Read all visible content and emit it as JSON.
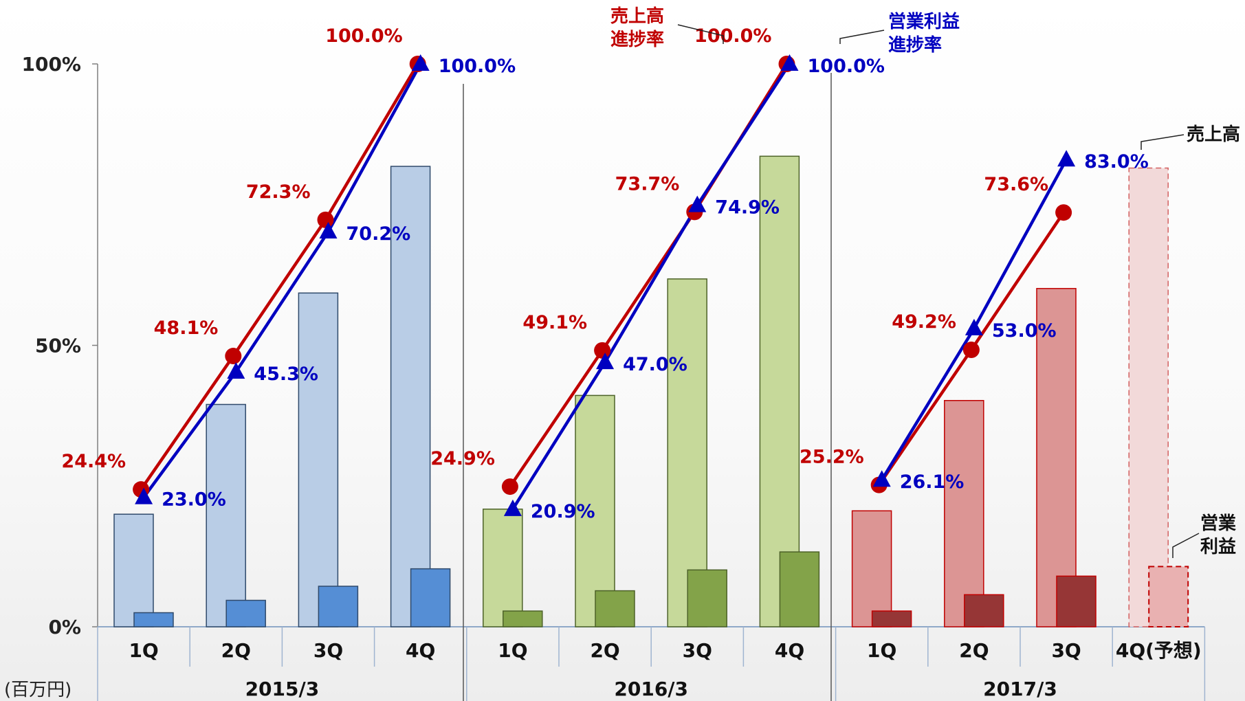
{
  "chart_data": {
    "type": "bar",
    "unit_label": "(百万円)",
    "y_ticks": [
      "0%",
      "50%",
      "100%"
    ],
    "ylim": [
      0,
      100
    ],
    "groups": [
      {
        "year": "2015/3",
        "color_light": "#b9cde6",
        "color_dark": "#558ed5",
        "border": "#2f4a6b",
        "quarters": [
          "1Q",
          "2Q",
          "3Q",
          "4Q"
        ],
        "sales_bar_pct": [
          20.0,
          39.5,
          59.3,
          81.8
        ],
        "op_bar_pct": [
          2.5,
          4.7,
          7.2,
          10.3
        ],
        "sales_progress": [
          24.4,
          48.1,
          72.3,
          100.0
        ],
        "sales_progress_labels": [
          "24.4%",
          "48.1%",
          "72.3%",
          "100.0%"
        ],
        "op_progress": [
          23.0,
          45.3,
          70.2,
          100.0
        ],
        "op_progress_labels": [
          "23.0%",
          "45.3%",
          "70.2%",
          "100.0%"
        ]
      },
      {
        "year": "2016/3",
        "color_light": "#c6d99a",
        "color_dark": "#83a349",
        "border": "#4d6228",
        "quarters": [
          "1Q",
          "2Q",
          "3Q",
          "4Q"
        ],
        "sales_bar_pct": [
          20.9,
          41.1,
          61.8,
          83.6
        ],
        "op_bar_pct": [
          2.8,
          6.4,
          10.1,
          13.3
        ],
        "sales_progress": [
          24.9,
          49.1,
          73.7,
          100.0
        ],
        "sales_progress_labels": [
          "24.9%",
          "49.1%",
          "73.7%",
          "100.0%"
        ],
        "op_progress": [
          20.9,
          47.0,
          74.9,
          100.0
        ],
        "op_progress_labels": [
          "20.9%",
          "47.0%",
          "74.9%",
          "100.0%"
        ]
      },
      {
        "year": "2017/3",
        "color_light": "#dc9594",
        "color_dark": "#963636",
        "border": "#c00000",
        "quarters": [
          "1Q",
          "2Q",
          "3Q",
          "4Q(予想)"
        ],
        "sales_bar_pct": [
          20.6,
          40.2,
          60.1,
          81.5
        ],
        "op_bar_pct": [
          2.8,
          5.7,
          9.0,
          10.7
        ],
        "forecast_index": 3,
        "forecast_light": "#f2d9d9",
        "forecast_dark": "#e9b1b1",
        "sales_progress": [
          25.2,
          49.2,
          73.6
        ],
        "sales_progress_labels": [
          "25.2%",
          "49.2%",
          "73.6%"
        ],
        "op_progress": [
          26.1,
          53.0,
          83.0
        ],
        "op_progress_labels": [
          "26.1%",
          "53.0%",
          "83.0%"
        ]
      }
    ],
    "series": [
      {
        "name": "売上高進捗率",
        "color": "#c00000",
        "marker": "circle"
      },
      {
        "name": "営業利益進捗率",
        "color": "#0000c0",
        "marker": "triangle"
      }
    ],
    "annotations": {
      "sales_rate": [
        "売上高",
        "進捗率"
      ],
      "op_rate": [
        "営業利益",
        "進捗率"
      ],
      "sales": [
        "売上高"
      ],
      "op": [
        "営業",
        "利益"
      ]
    }
  }
}
